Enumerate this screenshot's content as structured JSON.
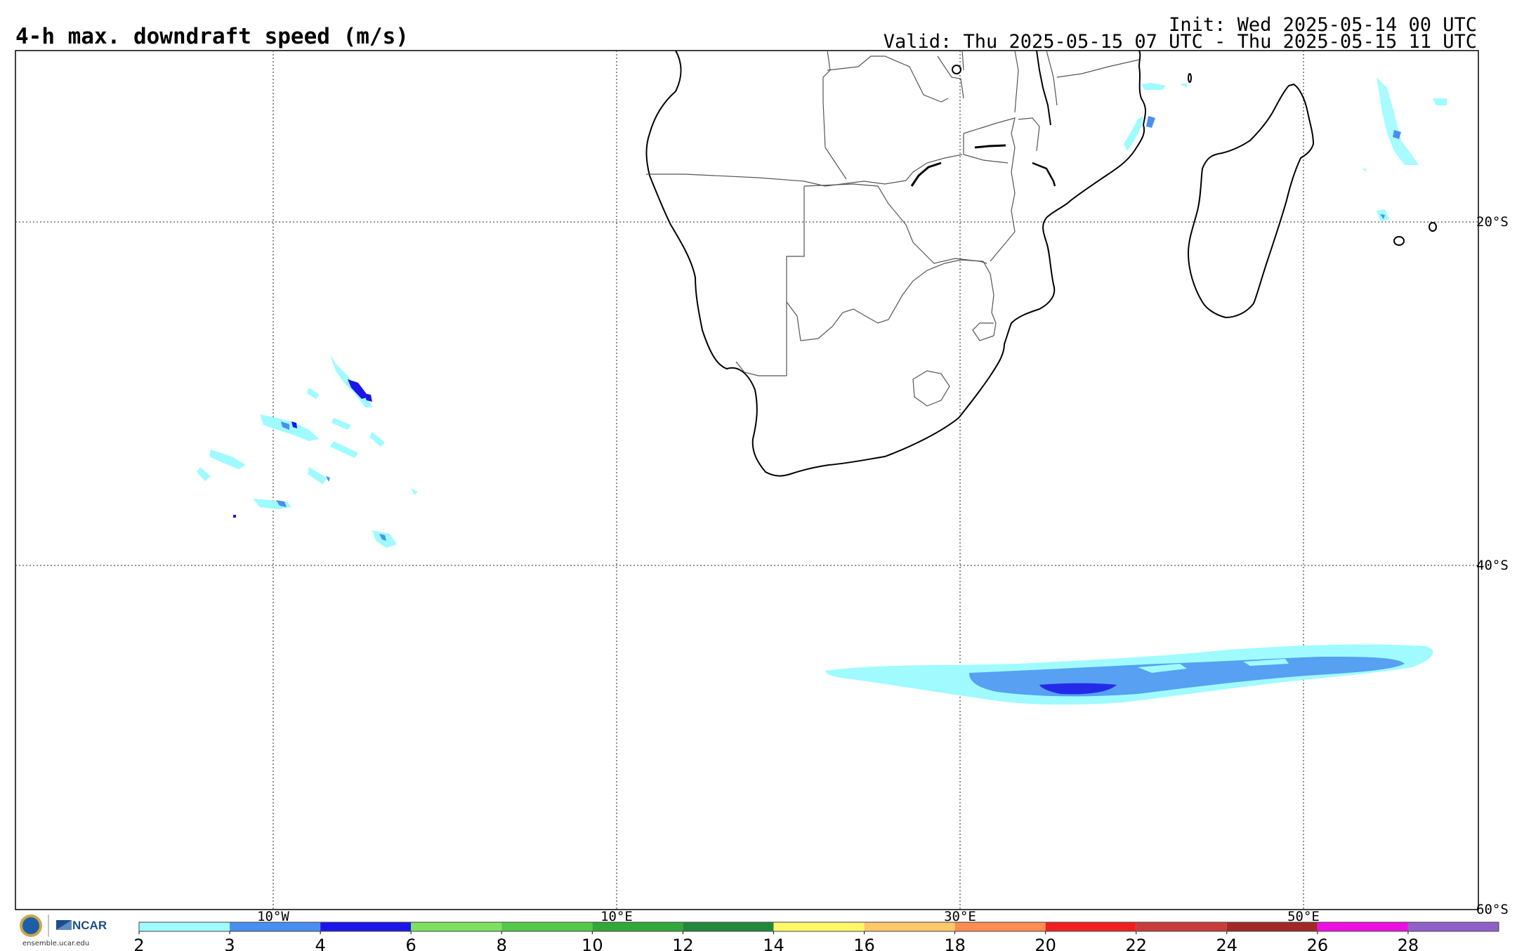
{
  "header": {
    "title": "4-h max. downdraft speed (m/s)",
    "init": "Init: Wed 2025-05-14 00 UTC",
    "valid": "Valid: Thu 2025-05-15 07 UTC - Thu 2025-05-15 11 UTC"
  },
  "map": {
    "lat_labels": [
      "20°S",
      "40°S",
      "60°S"
    ],
    "lon_labels": [
      "10°W",
      "10°E",
      "30°E",
      "50°E"
    ],
    "gridlines": "dotted"
  },
  "colorbar": {
    "ticks": [
      "2",
      "3",
      "4",
      "6",
      "8",
      "10",
      "12",
      "14",
      "16",
      "18",
      "20",
      "22",
      "24",
      "26",
      "28"
    ],
    "colors": [
      "#9ffbff",
      "#4a8ff0",
      "#1a16e8",
      "#7ee060",
      "#53c84a",
      "#32a83c",
      "#22883a",
      "#fff86a",
      "#ffc86a",
      "#ff8c50",
      "#f02020",
      "#c83c3c",
      "#a02828",
      "#ee10e0",
      "#9060c8"
    ]
  },
  "logo": {
    "org": "NCAR",
    "url": "ensemble.ucar.edu"
  }
}
